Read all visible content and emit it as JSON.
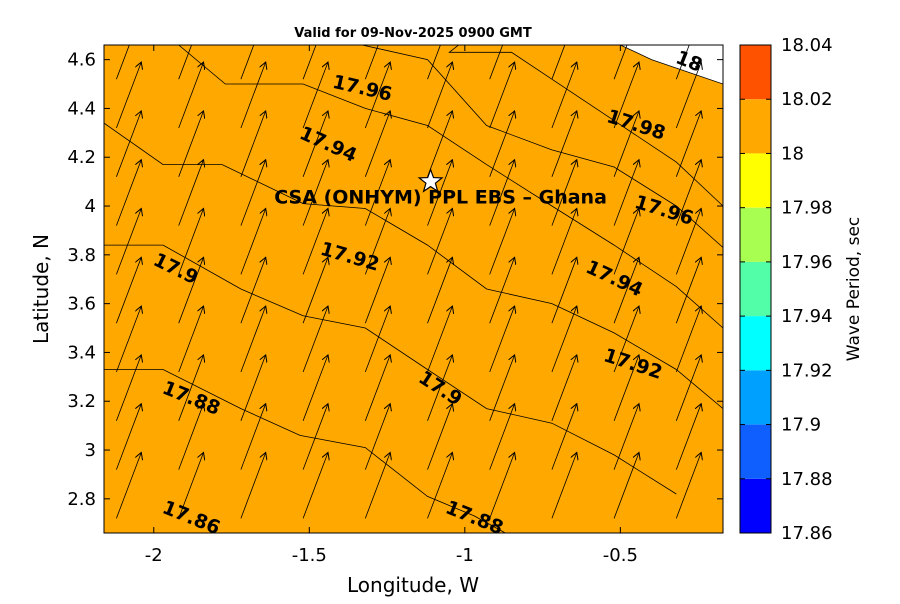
{
  "chart_data": {
    "type": "heatmap",
    "subtype": "filled-contour-with-wind-arrows",
    "title": "Valid for 09-Nov-2025 0900 GMT",
    "xlabel": "Longitude, W",
    "ylabel": "Latitude, N",
    "xlim": [
      -2.16,
      -0.17
    ],
    "ylim": [
      2.66,
      4.66
    ],
    "xticks": [
      -2,
      -1.5,
      -1,
      -0.5
    ],
    "xtick_labels": [
      "-2",
      "-1.5",
      "-1",
      "-0.5"
    ],
    "yticks": [
      2.8,
      3.0,
      3.2,
      3.4,
      3.6,
      3.8,
      4.0,
      4.2,
      4.4,
      4.6
    ],
    "ytick_labels": [
      "2.8",
      "3",
      "3.2",
      "3.4",
      "3.6",
      "3.8",
      "4",
      "4.2",
      "4.4",
      "4.6"
    ],
    "colorbar": {
      "label": "Wave Period, sec",
      "levels": [
        17.86,
        17.88,
        17.9,
        17.92,
        17.94,
        17.96,
        17.98,
        18.0,
        18.02,
        18.04
      ],
      "tick_labels": [
        "17.86",
        "17.88",
        "17.9",
        "17.92",
        "17.94",
        "17.96",
        "17.98",
        "18",
        "18.02",
        "18.04"
      ],
      "colors": [
        "#0000ff",
        "#0f5fff",
        "#00a0ff",
        "#00ffff",
        "#52ffa8",
        "#a8ff52",
        "#ffff00",
        "#ffa800",
        "#ff5200"
      ]
    },
    "contours": [
      {
        "level": 17.86,
        "label": "17.86",
        "fill": "#0000ff",
        "poly": [
          [
            -2.16,
            2.66
          ],
          [
            -0.17,
            2.66
          ],
          [
            -0.17,
            2.66
          ],
          [
            -2.16,
            2.66
          ]
        ]
      },
      {
        "level": 17.88,
        "label": "17.88",
        "fill": "#0f5fff",
        "poly": [
          [
            -2.16,
            2.66
          ],
          [
            -2.16,
            3.33
          ],
          [
            -1.97,
            3.33
          ],
          [
            -1.72,
            3.17
          ],
          [
            -1.53,
            3.06
          ],
          [
            -1.32,
            3.01
          ],
          [
            -1.12,
            2.81
          ],
          [
            -0.97,
            2.73
          ],
          [
            -0.87,
            2.66
          ]
        ]
      },
      {
        "level": 17.9,
        "label": "17.9",
        "fill": "#00a0ff",
        "poly": [
          [
            -2.16,
            2.66
          ],
          [
            -2.16,
            3.84
          ],
          [
            -1.97,
            3.84
          ],
          [
            -1.72,
            3.66
          ],
          [
            -1.52,
            3.55
          ],
          [
            -1.32,
            3.5
          ],
          [
            -1.12,
            3.33
          ],
          [
            -0.93,
            3.17
          ],
          [
            -0.72,
            3.11
          ],
          [
            -0.52,
            2.98
          ],
          [
            -0.32,
            2.82
          ],
          [
            -0.17,
            2.66
          ]
        ]
      },
      {
        "level": 17.92,
        "label": "17.92",
        "fill": "#00ffff",
        "poly": [
          [
            -2.16,
            2.66
          ],
          [
            -2.16,
            4.34
          ],
          [
            -1.97,
            4.17
          ],
          [
            -1.78,
            4.17
          ],
          [
            -1.52,
            4.01
          ],
          [
            -1.32,
            3.99
          ],
          [
            -1.12,
            3.84
          ],
          [
            -0.93,
            3.66
          ],
          [
            -0.72,
            3.6
          ],
          [
            -0.52,
            3.48
          ],
          [
            -0.32,
            3.33
          ],
          [
            -0.17,
            3.17
          ],
          [
            -0.17,
            2.66
          ]
        ]
      },
      {
        "level": 17.94,
        "label": "17.94",
        "fill": "#52ffa8",
        "poly": [
          [
            -2.16,
            2.66
          ],
          [
            -2.16,
            4.66
          ],
          [
            -1.92,
            4.66
          ],
          [
            -1.77,
            4.5
          ],
          [
            -1.52,
            4.5
          ],
          [
            -1.32,
            4.4
          ],
          [
            -1.12,
            4.33
          ],
          [
            -0.93,
            4.17
          ],
          [
            -0.72,
            4.0
          ],
          [
            -0.52,
            3.84
          ],
          [
            -0.32,
            3.67
          ],
          [
            -0.17,
            3.5
          ],
          [
            -0.17,
            2.66
          ]
        ]
      },
      {
        "level": 17.96,
        "label": "17.96",
        "fill": "#a8ff52",
        "poly": [
          [
            -2.16,
            2.66
          ],
          [
            -2.16,
            4.66
          ],
          [
            -1.33,
            4.66
          ],
          [
            -1.12,
            4.6
          ],
          [
            -0.93,
            4.33
          ],
          [
            -0.72,
            4.23
          ],
          [
            -0.52,
            4.16
          ],
          [
            -0.32,
            4.0
          ],
          [
            -0.17,
            3.83
          ],
          [
            -0.17,
            2.66
          ]
        ]
      },
      {
        "level": 17.98,
        "label": "17.98",
        "fill": "#ffff00",
        "poly": [
          [
            -2.16,
            2.66
          ],
          [
            -2.16,
            4.66
          ],
          [
            -1.02,
            4.66
          ],
          [
            -1.05,
            4.63
          ],
          [
            -0.85,
            4.63
          ],
          [
            -0.72,
            4.52
          ],
          [
            -0.52,
            4.35
          ],
          [
            -0.32,
            4.18
          ],
          [
            -0.17,
            4.0
          ],
          [
            -0.17,
            2.66
          ]
        ]
      },
      {
        "level": 18.0,
        "label": "18",
        "fill": "#ffa800",
        "poly": [
          [
            -2.16,
            2.66
          ],
          [
            -2.16,
            4.66
          ],
          [
            -0.5,
            4.66
          ],
          [
            -0.4,
            4.6
          ],
          [
            -0.17,
            4.5
          ],
          [
            -0.17,
            2.66
          ]
        ]
      }
    ],
    "contour_labels": [
      {
        "text": "17.86",
        "lon": -1.88,
        "lat": 2.72,
        "angle": 22
      },
      {
        "text": "17.88",
        "lon": -1.88,
        "lat": 3.21,
        "angle": 22
      },
      {
        "text": "17.88",
        "lon": -0.97,
        "lat": 2.72,
        "angle": 22
      },
      {
        "text": "17.9",
        "lon": -1.93,
        "lat": 3.74,
        "angle": 26
      },
      {
        "text": "17.9",
        "lon": -1.08,
        "lat": 3.25,
        "angle": 33
      },
      {
        "text": "17.92",
        "lon": -1.37,
        "lat": 3.79,
        "angle": 16
      },
      {
        "text": "17.92",
        "lon": -0.46,
        "lat": 3.35,
        "angle": 18
      },
      {
        "text": "17.94",
        "lon": -1.44,
        "lat": 4.25,
        "angle": 24
      },
      {
        "text": "17.94",
        "lon": -0.52,
        "lat": 3.7,
        "angle": 25
      },
      {
        "text": "17.96",
        "lon": -1.33,
        "lat": 4.48,
        "angle": 13
      },
      {
        "text": "17.96",
        "lon": -0.36,
        "lat": 3.98,
        "angle": 17
      },
      {
        "text": "17.98",
        "lon": -0.45,
        "lat": 4.33,
        "angle": 18
      },
      {
        "text": "18",
        "lon": -0.28,
        "lat": 4.59,
        "angle": 22
      }
    ],
    "arrows": {
      "lons": [
        -2.12,
        -1.92,
        -1.72,
        -1.52,
        -1.32,
        -1.12,
        -0.92,
        -0.72,
        -0.52,
        -0.32
      ],
      "lats": [
        2.72,
        2.92,
        3.12,
        3.32,
        3.52,
        3.72,
        3.92,
        4.12,
        4.32,
        4.52
      ],
      "dx_deg": 0.08,
      "dy_deg": 0.27
    },
    "annotation": {
      "label": "CSA (ONHYM) PPL EBS  – Ghana",
      "marker": "star",
      "lon": -1.11,
      "lat": 4.1
    }
  }
}
